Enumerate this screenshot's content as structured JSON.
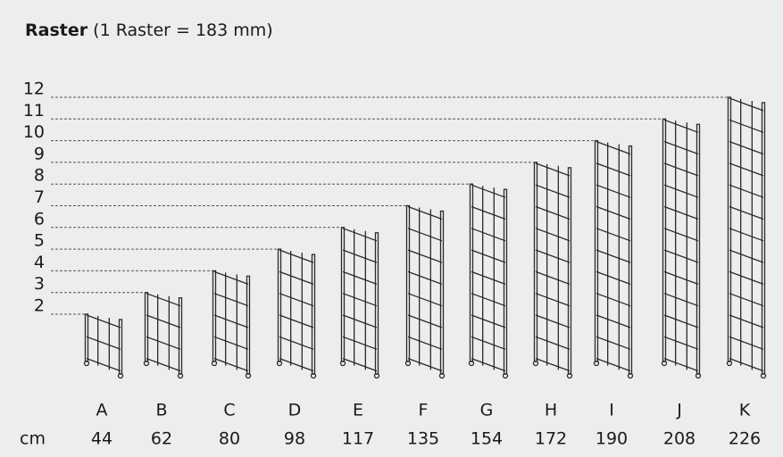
{
  "header": {
    "title": "Raster",
    "subtitle": "(1 Raster = 183 mm)"
  },
  "levels": [
    2,
    3,
    4,
    5,
    6,
    7,
    8,
    9,
    10,
    11,
    12
  ],
  "unit": "cm",
  "panels": [
    {
      "label": "A",
      "cm": 44
    },
    {
      "label": "B",
      "cm": 62
    },
    {
      "label": "C",
      "cm": 80
    },
    {
      "label": "D",
      "cm": 98
    },
    {
      "label": "E",
      "cm": 117
    },
    {
      "label": "F",
      "cm": 135
    },
    {
      "label": "G",
      "cm": 154
    },
    {
      "label": "H",
      "cm": 172
    },
    {
      "label": "I",
      "cm": 190
    },
    {
      "label": "J",
      "cm": 208
    },
    {
      "label": "K",
      "cm": 226
    }
  ]
}
